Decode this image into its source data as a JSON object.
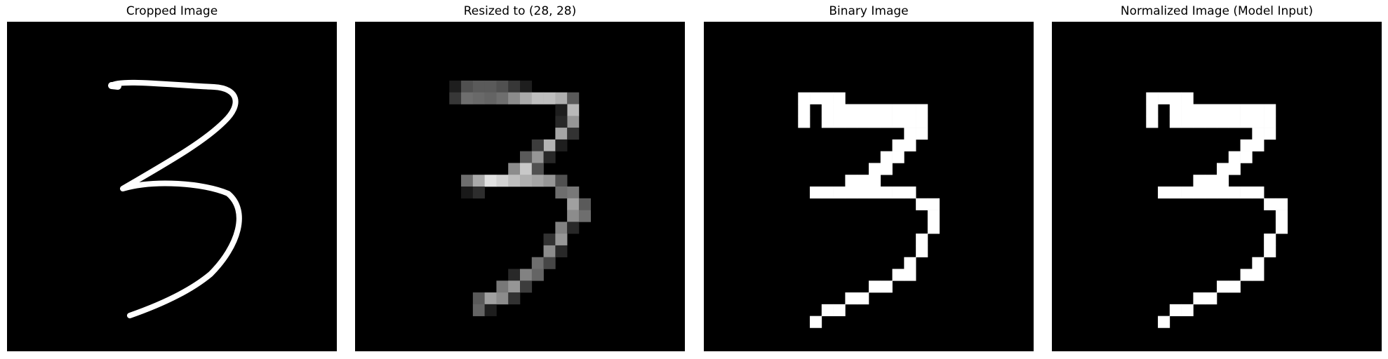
{
  "figure": {
    "background": "#ffffff",
    "panels": [
      {
        "title": "Cropped Image",
        "kind": "stroke"
      },
      {
        "title": "Resized to (28, 28)",
        "kind": "grayscale"
      },
      {
        "title": "Binary Image",
        "kind": "binary"
      },
      {
        "title": "Normalized Image (Model Input)",
        "kind": "binary"
      }
    ]
  },
  "digit": {
    "label": "3",
    "grid_size": 28,
    "binary_rows": [
      "",
      "",
      "",
      "",
      "",
      "..........................",
      "........####..............",
      "........#.#########.......",
      "........#.#########.......",
      ".................##.......",
      "................##........",
      "...............##.........",
      "..............##..........",
      "............###...........",
      ".........#########........",
      "..................##......",
      "...................#......",
      "...................#......",
      "..................#.......",
      "..................#.......",
      ".................#........",
      "................##........",
      "..............##..........",
      "............##............",
      "..........##..............",
      ".........#................",
      "",
      ""
    ],
    "gray_pixels": [
      [
        5,
        8,
        30
      ],
      [
        5,
        9,
        80
      ],
      [
        5,
        10,
        90
      ],
      [
        5,
        11,
        90
      ],
      [
        5,
        12,
        80
      ],
      [
        5,
        13,
        55
      ],
      [
        5,
        14,
        30
      ],
      [
        6,
        8,
        55
      ],
      [
        6,
        9,
        110
      ],
      [
        6,
        10,
        105
      ],
      [
        6,
        11,
        100
      ],
      [
        6,
        12,
        110
      ],
      [
        6,
        13,
        140
      ],
      [
        6,
        14,
        170
      ],
      [
        6,
        15,
        190
      ],
      [
        6,
        16,
        190
      ],
      [
        6,
        17,
        175
      ],
      [
        6,
        18,
        90
      ],
      [
        7,
        18,
        185
      ],
      [
        7,
        17,
        30
      ],
      [
        8,
        18,
        150
      ],
      [
        8,
        17,
        40
      ],
      [
        9,
        17,
        165
      ],
      [
        9,
        18,
        50
      ],
      [
        10,
        16,
        180
      ],
      [
        10,
        15,
        60
      ],
      [
        10,
        17,
        30
      ],
      [
        11,
        15,
        150
      ],
      [
        11,
        14,
        90
      ],
      [
        11,
        16,
        40
      ],
      [
        12,
        13,
        140
      ],
      [
        12,
        14,
        200
      ],
      [
        12,
        15,
        80
      ],
      [
        13,
        9,
        110
      ],
      [
        13,
        10,
        170
      ],
      [
        13,
        11,
        225
      ],
      [
        13,
        12,
        210
      ],
      [
        13,
        13,
        190
      ],
      [
        13,
        14,
        175
      ],
      [
        13,
        15,
        165
      ],
      [
        13,
        16,
        150
      ],
      [
        13,
        17,
        80
      ],
      [
        14,
        9,
        25
      ],
      [
        14,
        10,
        45
      ],
      [
        14,
        17,
        110
      ],
      [
        14,
        18,
        120
      ],
      [
        15,
        18,
        160
      ],
      [
        15,
        19,
        90
      ],
      [
        16,
        18,
        140
      ],
      [
        16,
        19,
        110
      ],
      [
        17,
        17,
        130
      ],
      [
        17,
        18,
        40
      ],
      [
        18,
        16,
        50
      ],
      [
        18,
        17,
        150
      ],
      [
        19,
        16,
        140
      ],
      [
        19,
        17,
        40
      ],
      [
        20,
        15,
        110
      ],
      [
        20,
        16,
        70
      ],
      [
        21,
        13,
        40
      ],
      [
        21,
        14,
        130
      ],
      [
        21,
        15,
        100
      ],
      [
        22,
        12,
        120
      ],
      [
        22,
        13,
        150
      ],
      [
        22,
        14,
        60
      ],
      [
        23,
        10,
        90
      ],
      [
        23,
        11,
        160
      ],
      [
        23,
        12,
        140
      ],
      [
        23,
        13,
        50
      ],
      [
        24,
        10,
        100
      ],
      [
        24,
        11,
        30
      ]
    ],
    "stroke_color": "#ffffff",
    "background_color": "#000000"
  }
}
